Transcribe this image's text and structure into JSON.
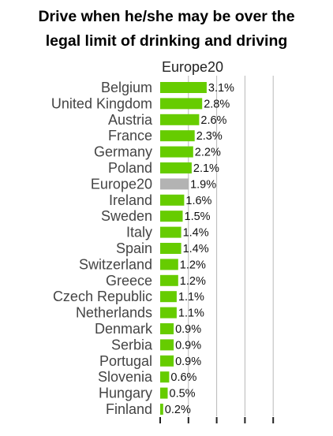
{
  "chart_data": {
    "type": "bar",
    "orientation": "horizontal",
    "title": "Drive when he/she may be over the\nlegal limit of drinking and driving",
    "series": [
      {
        "name": "Europe20",
        "values": [
          3.1,
          2.8,
          2.6,
          2.3,
          2.2,
          2.1,
          1.9,
          1.6,
          1.5,
          1.4,
          1.4,
          1.2,
          1.2,
          1.1,
          1.1,
          0.9,
          0.9,
          0.9,
          0.6,
          0.5,
          0.2
        ]
      }
    ],
    "categories": [
      "Belgium",
      "United Kingdom",
      "Austria",
      "France",
      "Germany",
      "Poland",
      "Europe20",
      "Ireland",
      "Sweden",
      "Italy",
      "Spain",
      "Switzerland",
      "Greece",
      "Czech Republic",
      "Netherlands",
      "Denmark",
      "Serbia",
      "Portugal",
      "Slovenia",
      "Hungary",
      "Finland"
    ],
    "value_labels": [
      "3.1%",
      "2.8%",
      "2.6%",
      "2.3%",
      "2.2%",
      "2.1%",
      "1.9%",
      "1.6%",
      "1.5%",
      "1.4%",
      "1.4%",
      "1.2%",
      "1.2%",
      "1.1%",
      "1.1%",
      "0.9%",
      "0.9%",
      "0.9%",
      "0.6%",
      "0.5%",
      "0.2%"
    ],
    "highlight_category": "Europe20",
    "xlim": [
      0,
      8
    ],
    "grid": true,
    "xlabel": "",
    "ylabel": "",
    "colors": {
      "bar": "#66cc00",
      "highlight": "#b3b3b3",
      "grid": "#b8b8b8",
      "axis": "#222222"
    }
  }
}
